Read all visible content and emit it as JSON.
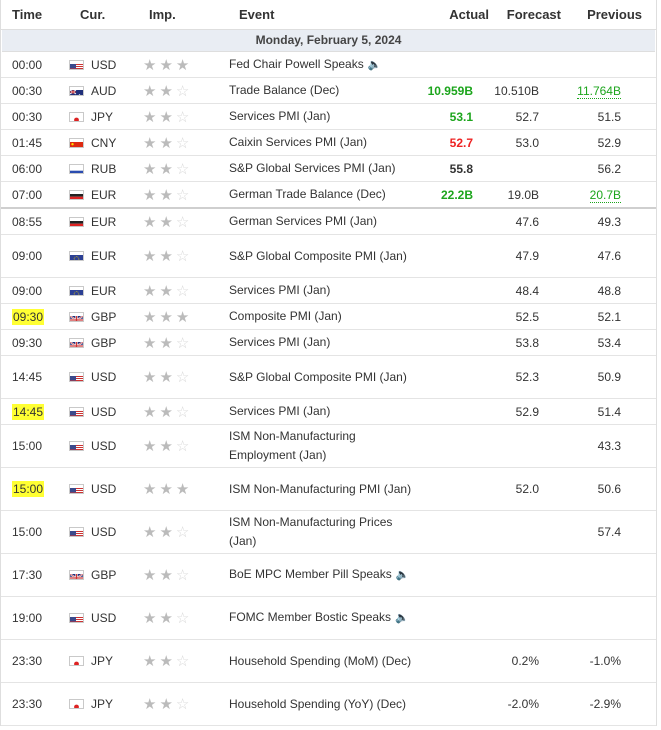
{
  "header": {
    "time": "Time",
    "cur": "Cur.",
    "imp": "Imp.",
    "event": "Event",
    "actual": "Actual",
    "forecast": "Forecast",
    "previous": "Previous"
  },
  "date_label": "Monday, February 5, 2024",
  "colors": {
    "green": "#1ca51c",
    "red": "#e22222",
    "highlight": "#ffff33"
  },
  "rows": [
    {
      "time": "00:00",
      "cur": "USD",
      "flag": "us",
      "stars": 3,
      "event": "Fed Chair Powell Speaks",
      "speech": true,
      "actual": "",
      "forecast": "",
      "previous": ""
    },
    {
      "time": "00:30",
      "cur": "AUD",
      "flag": "au",
      "stars": 2,
      "event": "Trade Balance (Dec)",
      "actual": "10.959B",
      "actual_color": "green",
      "forecast": "10.510B",
      "previous": "11.764B",
      "previous_color": "green"
    },
    {
      "time": "00:30",
      "cur": "JPY",
      "flag": "jp",
      "stars": 2,
      "event": "Services PMI (Jan)",
      "actual": "53.1",
      "actual_color": "green",
      "forecast": "52.7",
      "previous": "51.5"
    },
    {
      "time": "01:45",
      "cur": "CNY",
      "flag": "cn",
      "stars": 2,
      "event": "Caixin Services PMI (Jan)",
      "actual": "52.7",
      "actual_color": "red",
      "forecast": "53.0",
      "previous": "52.9"
    },
    {
      "time": "06:00",
      "cur": "RUB",
      "flag": "ru",
      "stars": 2,
      "event": "S&P Global Services PMI (Jan)",
      "actual": "55.8",
      "actual_color": "dark",
      "forecast": "",
      "previous": "56.2"
    },
    {
      "time": "07:00",
      "cur": "EUR",
      "flag": "de",
      "stars": 2,
      "event": "German Trade Balance (Dec)",
      "actual": "22.2B",
      "actual_color": "green",
      "forecast": "19.0B",
      "previous": "20.7B",
      "previous_color": "green"
    },
    {
      "time": "08:55",
      "cur": "EUR",
      "flag": "de",
      "stars": 2,
      "event": "German Services PMI (Jan)",
      "actual": "",
      "forecast": "47.6",
      "previous": "49.3"
    },
    {
      "time": "09:00",
      "cur": "EUR",
      "flag": "eu",
      "stars": 2,
      "event": "S&P Global Composite PMI (Jan)",
      "actual": "",
      "forecast": "47.9",
      "previous": "47.6"
    },
    {
      "time": "09:00",
      "cur": "EUR",
      "flag": "eu",
      "stars": 2,
      "event": "Services PMI (Jan)",
      "actual": "",
      "forecast": "48.4",
      "previous": "48.8"
    },
    {
      "time": "09:30",
      "cur": "GBP",
      "flag": "gb",
      "stars": 3,
      "event": "Composite PMI (Jan)",
      "actual": "",
      "forecast": "52.5",
      "previous": "52.1",
      "highlight": true
    },
    {
      "time": "09:30",
      "cur": "GBP",
      "flag": "gb",
      "stars": 2,
      "event": "Services PMI (Jan)",
      "actual": "",
      "forecast": "53.8",
      "previous": "53.4"
    },
    {
      "time": "14:45",
      "cur": "USD",
      "flag": "us",
      "stars": 2,
      "event": "S&P Global Composite PMI (Jan)",
      "actual": "",
      "forecast": "52.3",
      "previous": "50.9"
    },
    {
      "time": "14:45",
      "cur": "USD",
      "flag": "us",
      "stars": 2,
      "event": "Services PMI (Jan)",
      "actual": "",
      "forecast": "52.9",
      "previous": "51.4",
      "highlight": true
    },
    {
      "time": "15:00",
      "cur": "USD",
      "flag": "us",
      "stars": 2,
      "event": "ISM Non-Manufacturing Employment (Jan)",
      "actual": "",
      "forecast": "",
      "previous": "43.3"
    },
    {
      "time": "15:00",
      "cur": "USD",
      "flag": "us",
      "stars": 3,
      "event": "ISM Non-Manufacturing PMI (Jan)",
      "actual": "",
      "forecast": "52.0",
      "previous": "50.6",
      "highlight": true
    },
    {
      "time": "15:00",
      "cur": "USD",
      "flag": "us",
      "stars": 2,
      "event": "ISM Non-Manufacturing Prices (Jan)",
      "actual": "",
      "forecast": "",
      "previous": "57.4"
    },
    {
      "time": "17:30",
      "cur": "GBP",
      "flag": "gb",
      "stars": 2,
      "event": "BoE MPC Member Pill Speaks",
      "speech": true,
      "actual": "",
      "forecast": "",
      "previous": ""
    },
    {
      "time": "19:00",
      "cur": "USD",
      "flag": "us",
      "stars": 2,
      "event": "FOMC Member Bostic Speaks",
      "speech": true,
      "actual": "",
      "forecast": "",
      "previous": ""
    },
    {
      "time": "23:30",
      "cur": "JPY",
      "flag": "jp",
      "stars": 2,
      "event": "Household Spending (MoM) (Dec)",
      "actual": "",
      "forecast": "0.2%",
      "previous": "-1.0%"
    },
    {
      "time": "23:30",
      "cur": "JPY",
      "flag": "jp",
      "stars": 2,
      "event": "Household Spending (YoY) (Dec)",
      "actual": "",
      "forecast": "-2.0%",
      "previous": "-2.9%"
    }
  ]
}
